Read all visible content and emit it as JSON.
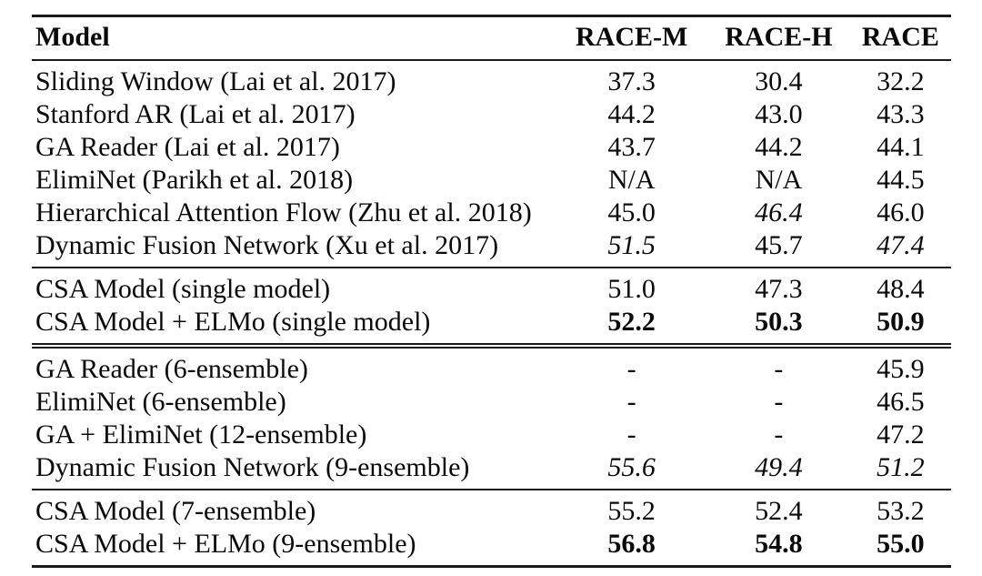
{
  "table": {
    "colors": {
      "text": "#0a0a0a",
      "rule": "#1a1a1a",
      "background": "#ffffff"
    },
    "columns": {
      "model": "Model",
      "race_m": "RACE-M",
      "race_h": "RACE-H",
      "race": "RACE"
    },
    "sections": [
      {
        "name": "published-baselines",
        "rows": [
          {
            "model": "Sliding Window (Lai et al. 2017)",
            "race_m": "37.3",
            "race_h": "30.4",
            "race": "32.2"
          },
          {
            "model": "Stanford AR (Lai et al. 2017)",
            "race_m": "44.2",
            "race_h": "43.0",
            "race": "43.3"
          },
          {
            "model": "GA Reader (Lai et al. 2017)",
            "race_m": "43.7",
            "race_h": "44.2",
            "race": "44.1"
          },
          {
            "model": "ElimiNet (Parikh et al. 2018)",
            "race_m": "N/A",
            "race_h": "N/A",
            "race": "44.5"
          },
          {
            "model": "Hierarchical Attention Flow (Zhu et al. 2018)",
            "race_m": "45.0",
            "race_h": "46.4",
            "race": "46.0"
          },
          {
            "model": "Dynamic Fusion Network (Xu et al. 2017)",
            "race_m": "51.5",
            "race_h": "45.7",
            "race": "47.4"
          }
        ]
      },
      {
        "name": "csa-single-models",
        "rows": [
          {
            "model": "CSA Model (single model)",
            "race_m": "51.0",
            "race_h": "47.3",
            "race": "48.4"
          },
          {
            "model": "CSA Model + ELMo (single model)",
            "race_m": "52.2",
            "race_h": "50.3",
            "race": "50.9"
          }
        ]
      },
      {
        "name": "ensemble-baselines",
        "rows": [
          {
            "model": "GA Reader (6-ensemble)",
            "race_m": "-",
            "race_h": "-",
            "race": "45.9"
          },
          {
            "model": "ElimiNet (6-ensemble)",
            "race_m": "-",
            "race_h": "-",
            "race": "46.5"
          },
          {
            "model": "GA + ElimiNet (12-ensemble)",
            "race_m": "-",
            "race_h": "-",
            "race": "47.2"
          },
          {
            "model": "Dynamic Fusion Network (9-ensemble)",
            "race_m": "55.6",
            "race_h": "49.4",
            "race": "51.2"
          }
        ]
      },
      {
        "name": "csa-ensembles",
        "rows": [
          {
            "model": "CSA Model (7-ensemble)",
            "race_m": "55.2",
            "race_h": "52.4",
            "race": "53.2"
          },
          {
            "model": "CSA Model + ELMo (9-ensemble)",
            "race_m": "56.8",
            "race_h": "54.8",
            "race": "55.0"
          }
        ]
      }
    ]
  }
}
